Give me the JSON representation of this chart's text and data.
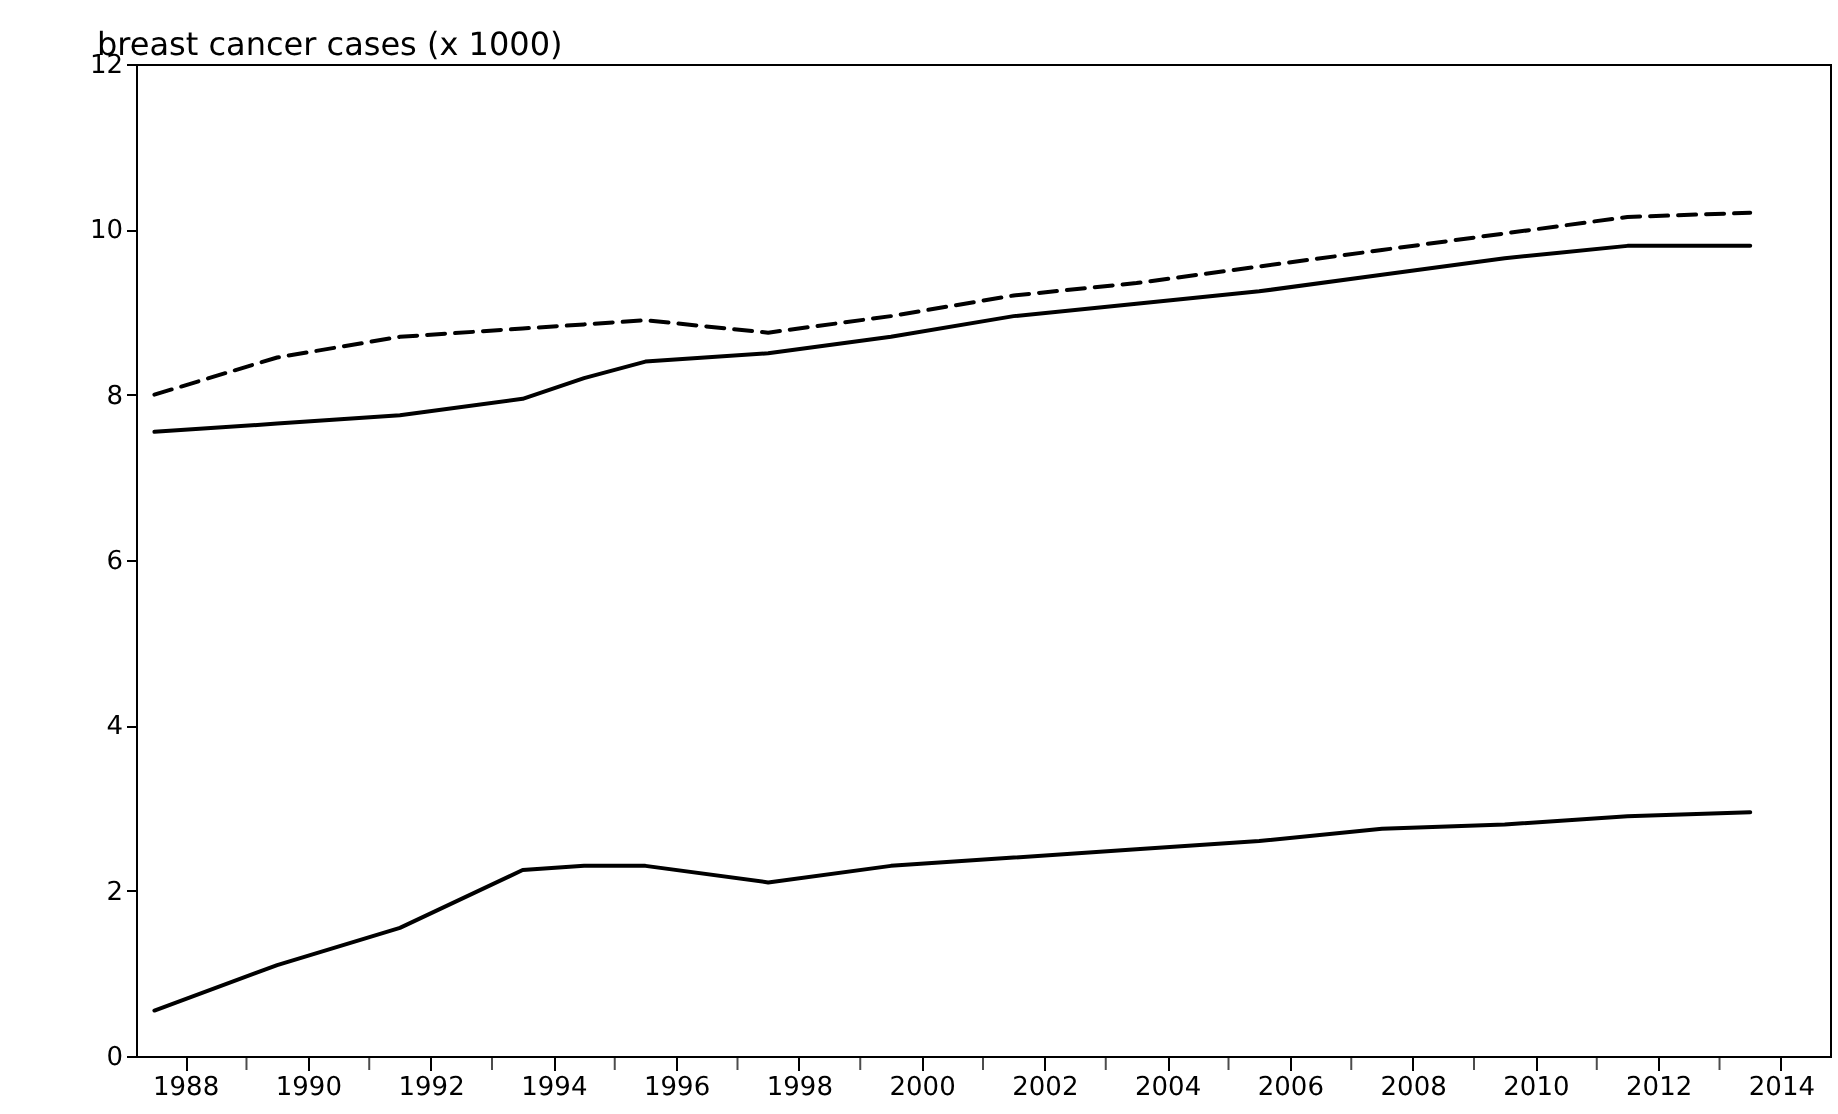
{
  "chart_data": {
    "type": "line",
    "ylabel": "breast cancer cases (x 1000)",
    "x": [
      1987.5,
      1989.5,
      1991.5,
      1993.5,
      1994.5,
      1995.5,
      1997.5,
      1999.5,
      2001.5,
      2003.5,
      2005.5,
      2007.5,
      2009.5,
      2011.5,
      2013.5
    ],
    "series": [
      {
        "color": "#000000",
        "line_style": "dashed",
        "values": [
          8.0,
          8.45,
          8.7,
          8.8,
          8.85,
          8.9,
          8.75,
          8.95,
          9.2,
          9.35,
          9.55,
          9.75,
          9.95,
          10.15,
          10.2
        ]
      },
      {
        "color": "#000000",
        "line_style": "solid",
        "values": [
          7.55,
          7.65,
          7.75,
          7.95,
          8.2,
          8.4,
          8.5,
          8.7,
          8.95,
          9.1,
          9.25,
          9.45,
          9.65,
          9.8,
          9.8
        ]
      },
      {
        "color": "#000000",
        "line_style": "solid",
        "values": [
          0.55,
          1.1,
          1.55,
          2.25,
          2.3,
          2.3,
          2.1,
          2.3,
          2.4,
          2.5,
          2.6,
          2.75,
          2.8,
          2.9,
          2.95
        ]
      }
    ],
    "xlim": [
      1987.2,
      2014.8
    ],
    "ylim": [
      0,
      12
    ],
    "xticks": [
      1988,
      {
        "value": 1989,
        "label": null
      },
      1990,
      {
        "value": 1991,
        "label": null
      },
      1992,
      {
        "value": 1993,
        "label": null
      },
      1994,
      {
        "value": 1995,
        "label": null
      },
      1996,
      {
        "value": 1997,
        "label": null
      },
      1998,
      {
        "value": 1999,
        "label": null
      },
      2000,
      {
        "value": 2001,
        "label": null
      },
      2002,
      {
        "value": 2003,
        "label": null
      },
      2004,
      {
        "value": 2005,
        "label": null
      },
      2006,
      {
        "value": 2007,
        "label": null
      },
      2008,
      {
        "value": 2009,
        "label": null
      },
      2010,
      {
        "value": 2011,
        "label": null
      },
      2012,
      {
        "value": 2013,
        "label": null
      },
      2014
    ],
    "yticks": [
      0,
      2,
      4,
      6,
      8,
      10,
      12
    ]
  }
}
